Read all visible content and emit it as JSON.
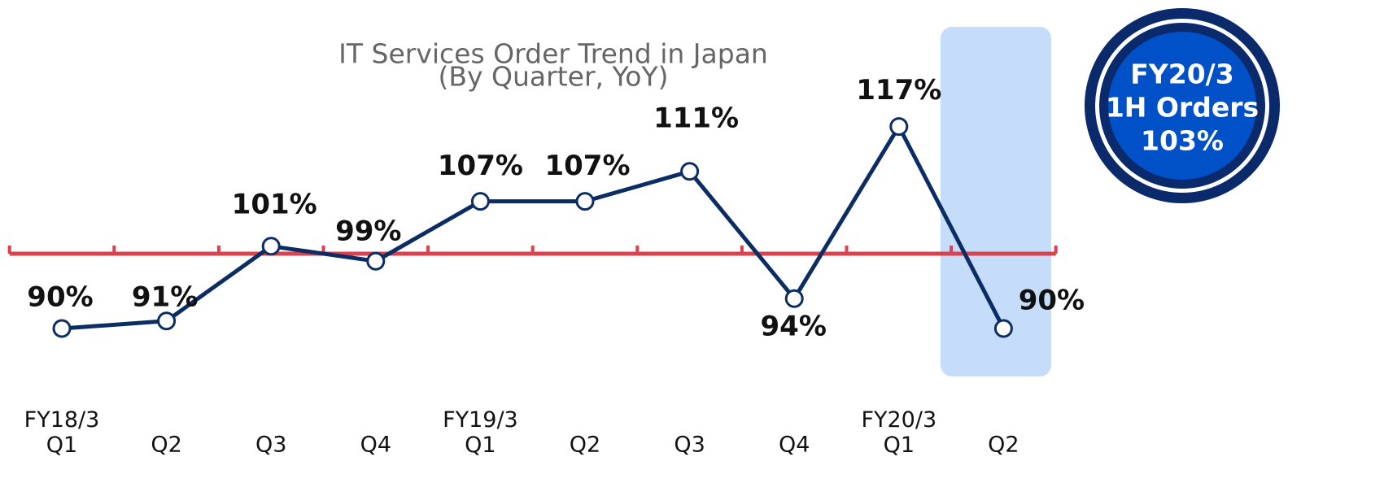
{
  "chart_data": {
    "type": "line",
    "title": "IT Services Order Trend in Japan",
    "subtitle": "(By Quarter, YoY)",
    "categories": [
      "FY18/3\nQ1",
      "Q2",
      "Q3",
      "Q4",
      "FY19/3\nQ1",
      "Q2",
      "Q3",
      "Q4",
      "FY20/3\nQ1",
      "Q2"
    ],
    "series": [
      {
        "name": "YoY",
        "color": "#0b2d64",
        "values": [
          90,
          91,
          101,
          99,
          107,
          107,
          111,
          94,
          117,
          90
        ],
        "value_labels": [
          "90%",
          "91%",
          "101%",
          "99%",
          "107%",
          "107%",
          "111%",
          "94%",
          "117%",
          "90%"
        ]
      }
    ],
    "reference_line": {
      "value": 100,
      "color": "#d9434f"
    },
    "highlight_color": "#c5dcfa",
    "ylim": [
      80,
      125
    ],
    "annotation": [
      "FY20/3",
      "1H Orders",
      "103%"
    ]
  }
}
